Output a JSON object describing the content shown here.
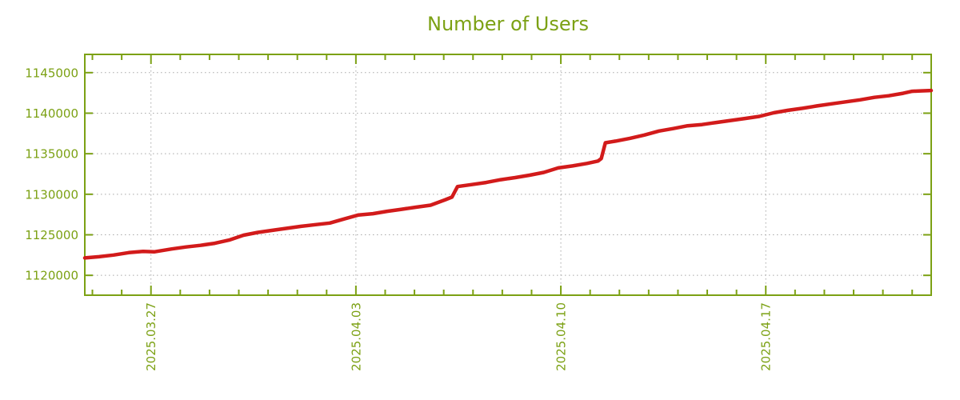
{
  "chart_data": {
    "type": "line",
    "title": "Number of Users",
    "xlabel": "",
    "ylabel": "",
    "legend": {
      "visible": false
    },
    "grid": {
      "horizontal": true,
      "vertical": true,
      "style": "dotted"
    },
    "colors": {
      "title": "#7CA114",
      "axis": "#7CA114",
      "tick_labels": "#7CA114",
      "grid": "#A8A8A8",
      "line": "#D21B1B",
      "background": "#FFFFFF"
    },
    "y_axis": {
      "range": [
        1117550,
        1147250
      ],
      "ticks": [
        {
          "value": 1120000,
          "label": "1120000"
        },
        {
          "value": 1125000,
          "label": "1125000"
        },
        {
          "value": 1130000,
          "label": "1130000"
        },
        {
          "value": 1135000,
          "label": "1135000"
        },
        {
          "value": 1140000,
          "label": "1140000"
        },
        {
          "value": 1145000,
          "label": "1145000"
        }
      ]
    },
    "x_axis": {
      "unit": "days (0 = 2025.03.24)",
      "range_days": [
        0.74,
        29.65
      ],
      "minor_tick_days": [
        1,
        2,
        3,
        4,
        5,
        6,
        7,
        8,
        9,
        10,
        11,
        12,
        13,
        14,
        15,
        16,
        17,
        18,
        19,
        20,
        21,
        22,
        23,
        24,
        25,
        26,
        27,
        28,
        29
      ],
      "major_ticks": [
        {
          "day": 3,
          "label": "2025.03.27"
        },
        {
          "day": 10,
          "label": "2025.04.03"
        },
        {
          "day": 17,
          "label": "2025.04.10"
        },
        {
          "day": 24,
          "label": "2025.04.17"
        }
      ]
    },
    "series": [
      {
        "name": "Number of Users",
        "color": "#D21B1B",
        "points": [
          [
            0.74,
            1122150
          ],
          [
            1.23,
            1122300
          ],
          [
            1.72,
            1122500
          ],
          [
            2.24,
            1122800
          ],
          [
            2.73,
            1122950
          ],
          [
            3.11,
            1122900
          ],
          [
            3.71,
            1123250
          ],
          [
            4.2,
            1123500
          ],
          [
            4.69,
            1123700
          ],
          [
            5.18,
            1123950
          ],
          [
            5.67,
            1124350
          ],
          [
            6.16,
            1124950
          ],
          [
            6.65,
            1125300
          ],
          [
            7.15,
            1125550
          ],
          [
            7.64,
            1125800
          ],
          [
            8.13,
            1126050
          ],
          [
            8.62,
            1126250
          ],
          [
            9.11,
            1126450
          ],
          [
            9.6,
            1126950
          ],
          [
            10.09,
            1127450
          ],
          [
            10.58,
            1127600
          ],
          [
            11.07,
            1127900
          ],
          [
            11.56,
            1128150
          ],
          [
            12.05,
            1128400
          ],
          [
            12.55,
            1128650
          ],
          [
            13.04,
            1129300
          ],
          [
            13.28,
            1129650
          ],
          [
            13.47,
            1130950
          ],
          [
            13.96,
            1131200
          ],
          [
            14.45,
            1131450
          ],
          [
            14.95,
            1131800
          ],
          [
            15.44,
            1132050
          ],
          [
            15.93,
            1132350
          ],
          [
            16.42,
            1132700
          ],
          [
            16.91,
            1133250
          ],
          [
            17.4,
            1133500
          ],
          [
            17.89,
            1133800
          ],
          [
            18.27,
            1134100
          ],
          [
            18.38,
            1134400
          ],
          [
            18.52,
            1136350
          ],
          [
            18.87,
            1136550
          ],
          [
            19.36,
            1136900
          ],
          [
            19.85,
            1137300
          ],
          [
            20.35,
            1137800
          ],
          [
            20.84,
            1138100
          ],
          [
            21.33,
            1138450
          ],
          [
            21.82,
            1138600
          ],
          [
            22.31,
            1138850
          ],
          [
            22.8,
            1139100
          ],
          [
            23.29,
            1139350
          ],
          [
            23.78,
            1139600
          ],
          [
            24.27,
            1140050
          ],
          [
            24.76,
            1140350
          ],
          [
            25.25,
            1140600
          ],
          [
            25.75,
            1140900
          ],
          [
            26.24,
            1141150
          ],
          [
            26.73,
            1141400
          ],
          [
            27.22,
            1141650
          ],
          [
            27.71,
            1141950
          ],
          [
            28.2,
            1142150
          ],
          [
            28.69,
            1142450
          ],
          [
            29.0,
            1142700
          ],
          [
            29.3,
            1142750
          ],
          [
            29.65,
            1142800
          ]
        ]
      }
    ]
  }
}
